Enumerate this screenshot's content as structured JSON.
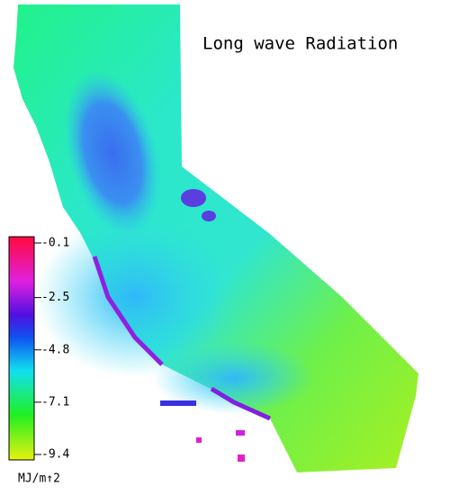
{
  "title": "Long wave Radiation",
  "colorbar": {
    "range": [
      -9.4,
      -0.1
    ],
    "ticks": [
      -0.1,
      -2.5,
      -4.8,
      -7.1,
      -9.4
    ],
    "unit": "MJ/m↑2"
  }
}
